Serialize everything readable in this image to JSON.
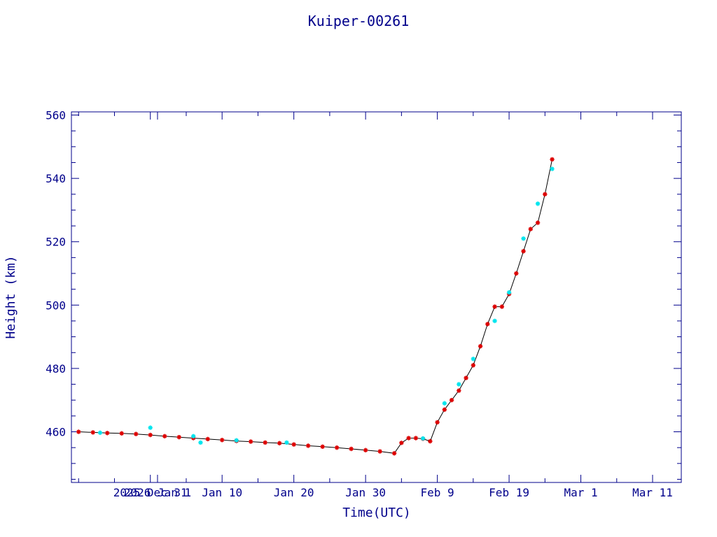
{
  "chart_data": {
    "type": "line",
    "title": "Kuiper-00261",
    "xlabel": "Time(UTC)",
    "ylabel": "Height (km)",
    "colors": {
      "axes": "#00008b",
      "line": "#000000",
      "marker_primary": "#dd0000",
      "marker_secondary": "#00e5ee"
    },
    "xlim": [
      "2025-12-20",
      "2026-03-15"
    ],
    "ylim": [
      444,
      561
    ],
    "x_ticks": [
      {
        "date": "2025-12-31",
        "label": "2025 Dec 31"
      },
      {
        "date": "2026-01-01",
        "label": "2026 Jan 1"
      },
      {
        "date": "2026-01-10",
        "label": "Jan 10"
      },
      {
        "date": "2026-01-20",
        "label": "Jan 20"
      },
      {
        "date": "2026-01-30",
        "label": "Jan 30"
      },
      {
        "date": "2026-02-09",
        "label": "Feb 9"
      },
      {
        "date": "2026-02-19",
        "label": "Feb 19"
      },
      {
        "date": "2026-03-01",
        "label": "Mar 1"
      },
      {
        "date": "2026-03-11",
        "label": "Mar 11"
      }
    ],
    "y_ticks": [
      460,
      480,
      500,
      520,
      540,
      560
    ],
    "series": [
      {
        "marker": "asterisk",
        "x": [
          "2025-12-21",
          "2025-12-23",
          "2025-12-25",
          "2025-12-27",
          "2025-12-29",
          "2025-12-31",
          "2026-01-02",
          "2026-01-04",
          "2026-01-06",
          "2026-01-08",
          "2026-01-10",
          "2026-01-12",
          "2026-01-14",
          "2026-01-16",
          "2026-01-18",
          "2026-01-20",
          "2026-01-22",
          "2026-01-24",
          "2026-01-26",
          "2026-01-28",
          "2026-01-30",
          "2026-02-01",
          "2026-02-03",
          "2026-02-04",
          "2026-02-05",
          "2026-02-06",
          "2026-02-07",
          "2026-02-08",
          "2026-02-09",
          "2026-02-10",
          "2026-02-11",
          "2026-02-12",
          "2026-02-13",
          "2026-02-14",
          "2026-02-15",
          "2026-02-16",
          "2026-02-17",
          "2026-02-18",
          "2026-02-19",
          "2026-02-20",
          "2026-02-21",
          "2026-02-22",
          "2026-02-23",
          "2026-02-24",
          "2026-02-25"
        ],
        "y": [
          460.0,
          459.8,
          459.6,
          459.5,
          459.3,
          459.0,
          458.6,
          458.3,
          458.0,
          457.7,
          457.4,
          457.1,
          456.9,
          456.6,
          456.4,
          456.0,
          455.6,
          455.3,
          455.0,
          454.6,
          454.2,
          453.8,
          453.2,
          456.5,
          458.0,
          458.0,
          457.8,
          457.0,
          463.0,
          467.0,
          470.0,
          473.0,
          477.0,
          481.0,
          487.0,
          494.0,
          499.5,
          499.5,
          503.5,
          510.0,
          517.0,
          524.0,
          526.0,
          535.0,
          546.0
        ]
      },
      {
        "marker": "cross",
        "x": [
          "2025-12-24",
          "2025-12-31",
          "2026-01-06",
          "2026-01-07",
          "2026-01-12",
          "2026-01-19",
          "2026-02-07",
          "2026-02-10",
          "2026-02-12",
          "2026-02-14",
          "2026-02-17",
          "2026-02-19",
          "2026-02-21",
          "2026-02-23",
          "2026-02-25"
        ],
        "y": [
          459.7,
          461.3,
          458.6,
          456.6,
          457.3,
          456.6,
          457.9,
          469.0,
          475.0,
          483.0,
          495.0,
          504.0,
          521.0,
          532.0,
          543.0
        ]
      }
    ]
  }
}
